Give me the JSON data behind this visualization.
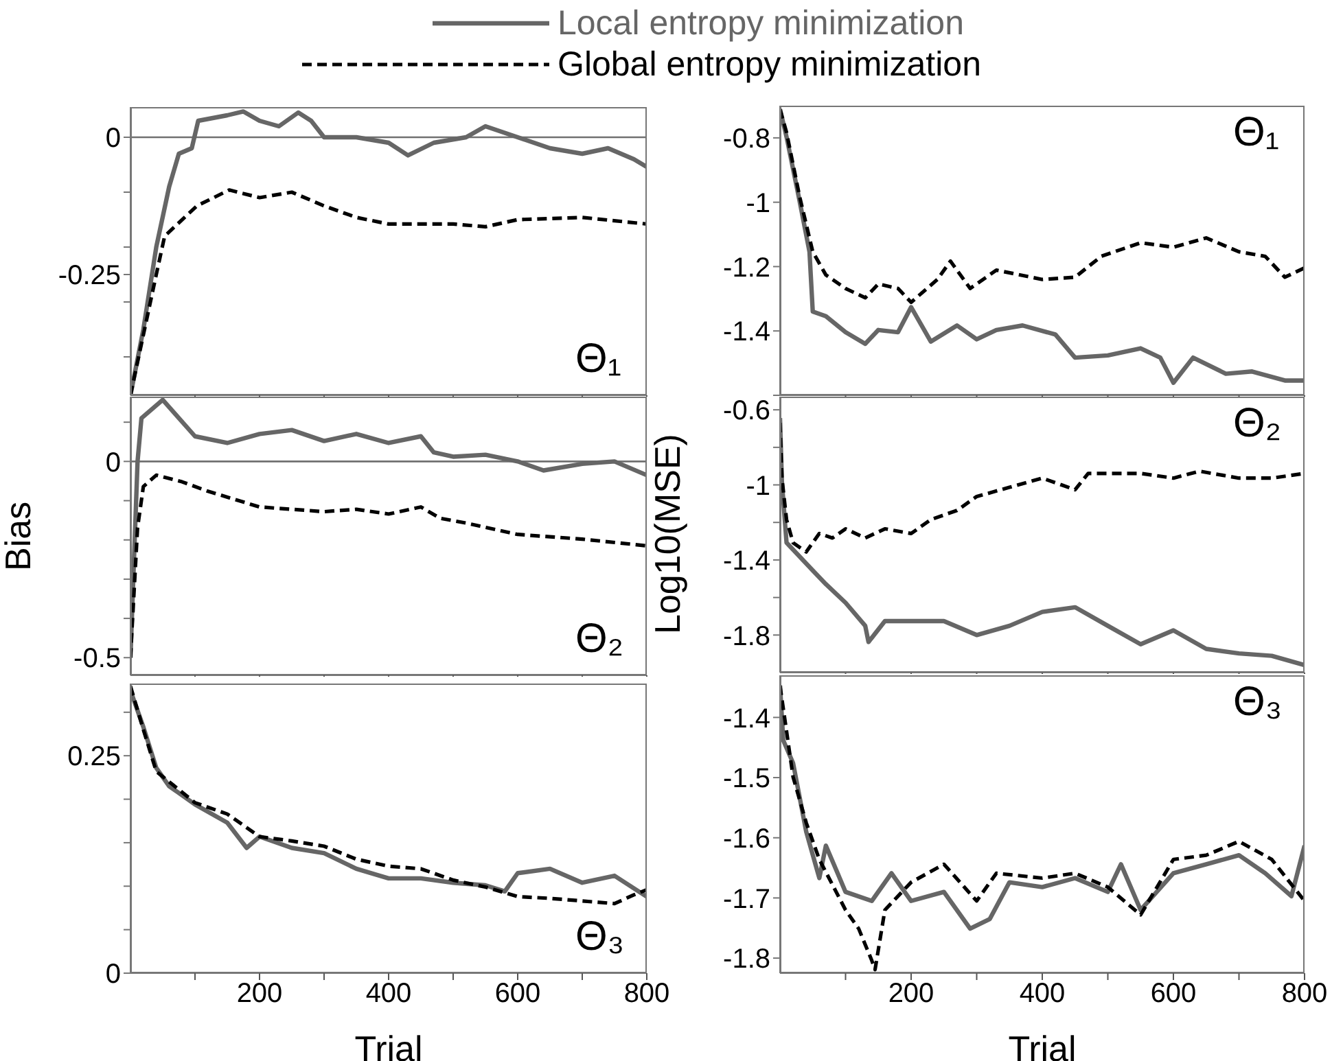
{
  "chart_data": [
    {
      "type": "line",
      "xlim": [
        0,
        800
      ],
      "xticks": [
        {
          "value": 100,
          "label": null
        },
        {
          "value": 200,
          "label": null
        },
        {
          "value": 300,
          "label": null
        },
        {
          "value": 400,
          "label": null
        },
        {
          "value": 500,
          "label": null
        },
        {
          "value": 600,
          "label": null
        },
        {
          "value": 700,
          "label": null
        },
        {
          "value": 800,
          "label": null
        }
      ],
      "ylim": [
        -0.47,
        0.055
      ],
      "yticks": [
        0,
        {
          "value": -0.1,
          "label": null
        },
        {
          "value": -0.2,
          "label": null
        },
        -0.25,
        {
          "value": -0.3,
          "label": null
        },
        {
          "value": -0.4,
          "label": null
        }
      ],
      "tick_labels": "y",
      "legend": "top",
      "annotations": [
        "Θ₁"
      ],
      "ref_lines": [
        {
          "axis": "y",
          "value": 0,
          "color": "#707070"
        }
      ],
      "series": [
        {
          "name": "Local entropy minimization",
          "color": "#666666",
          "line_style": "solid",
          "x": [
            0,
            20,
            40,
            60,
            75,
            95,
            105,
            150,
            175,
            200,
            230,
            260,
            280,
            300,
            350,
            400,
            430,
            470,
            520,
            550,
            600,
            650,
            700,
            740,
            780,
            800
          ],
          "values": [
            -0.47,
            -0.35,
            -0.2,
            -0.09,
            -0.03,
            -0.02,
            0.03,
            0.04,
            0.047,
            0.03,
            0.02,
            0.045,
            0.03,
            0.0,
            0.0,
            -0.01,
            -0.033,
            -0.01,
            0.0,
            0.02,
            0.0,
            -0.02,
            -0.03,
            -0.02,
            -0.04,
            -0.054
          ]
        },
        {
          "name": "Global entropy minimization",
          "color": "#000000",
          "line_style": "dashed",
          "x": [
            0,
            40,
            53,
            103,
            153,
            200,
            250,
            300,
            350,
            400,
            500,
            550,
            600,
            700,
            800
          ],
          "values": [
            -0.47,
            -0.25,
            -0.18,
            -0.125,
            -0.096,
            -0.11,
            -0.1,
            -0.125,
            -0.146,
            -0.158,
            -0.158,
            -0.163,
            -0.15,
            -0.146,
            -0.158
          ]
        }
      ]
    },
    {
      "type": "line",
      "xlim": [
        0,
        800
      ],
      "xticks": [
        {
          "value": 100,
          "label": null
        },
        {
          "value": 200,
          "label": null
        },
        {
          "value": 300,
          "label": null
        },
        {
          "value": 400,
          "label": null
        },
        {
          "value": 500,
          "label": null
        },
        {
          "value": 600,
          "label": null
        },
        {
          "value": 700,
          "label": null
        },
        {
          "value": 800,
          "label": null
        }
      ],
      "ylim": [
        -1.6,
        -0.7
      ],
      "yticks": [
        -0.8,
        -1,
        -1.2,
        -1.4,
        {
          "value": -1.6,
          "label": null
        }
      ],
      "tick_labels": "y",
      "annotations": [
        "Θ₁"
      ],
      "series": [
        {
          "color": "#666666",
          "line_style": "solid",
          "x": [
            0,
            10,
            30,
            45,
            50,
            70,
            100,
            130,
            150,
            180,
            200,
            230,
            270,
            300,
            330,
            370,
            420,
            450,
            500,
            550,
            580,
            600,
            630,
            680,
            720,
            770,
            800
          ],
          "values": [
            -0.711,
            -0.797,
            -0.997,
            -1.154,
            -1.34,
            -1.354,
            -1.404,
            -1.44,
            -1.397,
            -1.404,
            -1.326,
            -1.433,
            -1.383,
            -1.426,
            -1.397,
            -1.383,
            -1.411,
            -1.483,
            -1.476,
            -1.454,
            -1.483,
            -1.561,
            -1.483,
            -1.533,
            -1.526,
            -1.554,
            -1.554
          ]
        },
        {
          "color": "#000000",
          "line_style": "dashed",
          "x": [
            0,
            10,
            30,
            50,
            70,
            100,
            130,
            150,
            180,
            200,
            240,
            260,
            290,
            330,
            400,
            450,
            490,
            550,
            600,
            650,
            700,
            740,
            770,
            800
          ],
          "values": [
            -0.711,
            -0.783,
            -0.983,
            -1.154,
            -1.226,
            -1.268,
            -1.297,
            -1.254,
            -1.268,
            -1.311,
            -1.24,
            -1.183,
            -1.268,
            -1.211,
            -1.24,
            -1.233,
            -1.168,
            -1.126,
            -1.14,
            -1.111,
            -1.154,
            -1.168,
            -1.233,
            -1.204
          ]
        }
      ]
    },
    {
      "type": "line",
      "xlim": [
        0,
        800
      ],
      "xticks": [
        {
          "value": 100,
          "label": null
        },
        {
          "value": 200,
          "label": null
        },
        {
          "value": 300,
          "label": null
        },
        {
          "value": 400,
          "label": null
        },
        {
          "value": 500,
          "label": null
        },
        {
          "value": 600,
          "label": null
        },
        {
          "value": 700,
          "label": null
        },
        {
          "value": 800,
          "label": null
        }
      ],
      "ylim": [
        -0.545,
        0.165
      ],
      "yticks": [
        {
          "value": 0.1,
          "label": null
        },
        0,
        {
          "value": -0.1,
          "label": null
        },
        {
          "value": -0.2,
          "label": null
        },
        {
          "value": -0.3,
          "label": null
        },
        {
          "value": -0.4,
          "label": null
        },
        -0.5
      ],
      "tick_labels": "y",
      "ylabel": "Bias",
      "annotations": [
        "Θ₂"
      ],
      "ref_lines": [
        {
          "axis": "y",
          "value": 0,
          "color": "#707070"
        }
      ],
      "series": [
        {
          "color": "#666666",
          "line_style": "solid",
          "x": [
            0,
            11,
            17,
            50,
            100,
            150,
            200,
            250,
            300,
            350,
            400,
            450,
            470,
            500,
            550,
            600,
            640,
            700,
            750,
            800
          ],
          "values": [
            -0.5,
            0.0,
            0.11,
            0.157,
            0.064,
            0.047,
            0.07,
            0.08,
            0.052,
            0.07,
            0.047,
            0.064,
            0.023,
            0.012,
            0.017,
            0.0,
            -0.023,
            -0.006,
            0.0,
            -0.035
          ]
        },
        {
          "color": "#000000",
          "line_style": "dashed",
          "x": [
            0,
            11,
            20,
            40,
            80,
            120,
            200,
            250,
            300,
            350,
            400,
            450,
            480,
            520,
            600,
            650,
            700,
            800
          ],
          "values": [
            -0.5,
            -0.169,
            -0.064,
            -0.035,
            -0.052,
            -0.076,
            -0.116,
            -0.122,
            -0.128,
            -0.122,
            -0.134,
            -0.116,
            -0.145,
            -0.157,
            -0.186,
            -0.192,
            -0.198,
            -0.215
          ]
        }
      ]
    },
    {
      "type": "line",
      "xlim": [
        0,
        800
      ],
      "xticks": [
        {
          "value": 100,
          "label": null
        },
        {
          "value": 200,
          "label": null
        },
        {
          "value": 300,
          "label": null
        },
        {
          "value": 400,
          "label": null
        },
        {
          "value": 500,
          "label": null
        },
        {
          "value": 600,
          "label": null
        },
        {
          "value": 700,
          "label": null
        },
        {
          "value": 800,
          "label": null
        }
      ],
      "ylim": [
        -2.0,
        -0.53
      ],
      "yticks": [
        -0.6,
        {
          "value": -0.8,
          "label": null
        },
        -1,
        {
          "value": -1.2,
          "label": null
        },
        -1.4,
        {
          "value": -1.6,
          "label": null
        },
        -1.8
      ],
      "tick_labels": "y",
      "ylabel": "Log10(MSE)",
      "annotations": [
        "Θ₂"
      ],
      "series": [
        {
          "color": "#666666",
          "line_style": "solid",
          "x": [
            0,
            3,
            10,
            30,
            50,
            70,
            100,
            130,
            135,
            160,
            200,
            250,
            300,
            350,
            400,
            450,
            500,
            550,
            600,
            650,
            700,
            750,
            800
          ],
          "values": [
            -0.644,
            -0.989,
            -1.308,
            -1.382,
            -1.456,
            -1.529,
            -1.628,
            -1.751,
            -1.837,
            -1.726,
            -1.726,
            -1.726,
            -1.8,
            -1.751,
            -1.677,
            -1.652,
            -1.751,
            -1.849,
            -1.775,
            -1.874,
            -1.898,
            -1.911,
            -1.96
          ]
        },
        {
          "color": "#000000",
          "line_style": "dashed",
          "x": [
            0,
            3,
            10,
            20,
            40,
            60,
            80,
            100,
            130,
            160,
            200,
            230,
            270,
            300,
            350,
            400,
            430,
            450,
            470,
            550,
            600,
            640,
            700,
            750,
            800
          ],
          "values": [
            -0.669,
            -0.964,
            -1.185,
            -1.308,
            -1.357,
            -1.259,
            -1.283,
            -1.234,
            -1.283,
            -1.234,
            -1.259,
            -1.185,
            -1.136,
            -1.062,
            -1.013,
            -0.964,
            -1.001,
            -1.026,
            -0.939,
            -0.939,
            -0.964,
            -0.927,
            -0.964,
            -0.964,
            -0.939
          ]
        }
      ]
    },
    {
      "type": "line",
      "xlim": [
        0,
        800
      ],
      "xticks": [
        {
          "value": 100,
          "label": null
        },
        200,
        {
          "value": 300,
          "label": null
        },
        400,
        {
          "value": 500,
          "label": null
        },
        600,
        {
          "value": 700,
          "label": null
        },
        800
      ],
      "ylim": [
        0,
        0.333
      ],
      "yticks": [
        0,
        {
          "value": 0.05,
          "label": null
        },
        {
          "value": 0.1,
          "label": null
        },
        {
          "value": 0.15,
          "label": null
        },
        {
          "value": 0.2,
          "label": null
        },
        0.25,
        {
          "value": 0.3,
          "label": null
        }
      ],
      "xlabel": "Trial",
      "annotations": [
        "Θ₃"
      ],
      "series": [
        {
          "color": "#666666",
          "line_style": "solid",
          "x": [
            0,
            20,
            40,
            60,
            100,
            150,
            180,
            200,
            250,
            300,
            350,
            400,
            450,
            500,
            550,
            580,
            600,
            650,
            700,
            750,
            800
          ],
          "values": [
            0.325,
            0.283,
            0.236,
            0.215,
            0.194,
            0.173,
            0.144,
            0.157,
            0.144,
            0.138,
            0.12,
            0.109,
            0.109,
            0.104,
            0.101,
            0.094,
            0.115,
            0.12,
            0.104,
            0.112,
            0.088
          ]
        },
        {
          "color": "#000000",
          "line_style": "dashed",
          "x": [
            0,
            20,
            40,
            100,
            150,
            200,
            250,
            300,
            350,
            400,
            450,
            500,
            550,
            600,
            650,
            700,
            750,
            780,
            800
          ],
          "values": [
            0.33,
            0.28,
            0.232,
            0.196,
            0.183,
            0.157,
            0.152,
            0.146,
            0.131,
            0.123,
            0.12,
            0.107,
            0.099,
            0.088,
            0.086,
            0.083,
            0.08,
            0.09,
            0.096
          ]
        }
      ]
    },
    {
      "type": "line",
      "xlim": [
        0,
        800
      ],
      "xticks": [
        {
          "value": 100,
          "label": null
        },
        200,
        {
          "value": 300,
          "label": null
        },
        400,
        {
          "value": 500,
          "label": null
        },
        600,
        {
          "value": 700,
          "label": null
        },
        800
      ],
      "ylim": [
        -1.825,
        -1.33
      ],
      "yticks": [
        -1.4,
        -1.5,
        -1.6,
        -1.7,
        -1.8
      ],
      "xlabel": "Trial",
      "annotations": [
        "Θ₃"
      ],
      "series": [
        {
          "color": "#666666",
          "line_style": "solid",
          "x": [
            0,
            5,
            20,
            40,
            60,
            70,
            100,
            140,
            170,
            200,
            250,
            290,
            320,
            350,
            400,
            450,
            500,
            520,
            550,
            600,
            650,
            700,
            740,
            780,
            800
          ],
          "values": [
            -1.347,
            -1.438,
            -1.476,
            -1.59,
            -1.667,
            -1.613,
            -1.69,
            -1.705,
            -1.659,
            -1.705,
            -1.69,
            -1.751,
            -1.735,
            -1.674,
            -1.682,
            -1.667,
            -1.69,
            -1.644,
            -1.72,
            -1.659,
            -1.644,
            -1.629,
            -1.659,
            -1.697,
            -1.613
          ]
        },
        {
          "color": "#000000",
          "line_style": "dashed",
          "x": [
            0,
            20,
            40,
            60,
            100,
            120,
            140,
            145,
            160,
            200,
            250,
            300,
            330,
            400,
            450,
            500,
            550,
            600,
            650,
            700,
            750,
            800
          ],
          "values": [
            -1.347,
            -1.499,
            -1.575,
            -1.636,
            -1.72,
            -1.751,
            -1.804,
            -1.819,
            -1.72,
            -1.674,
            -1.644,
            -1.705,
            -1.659,
            -1.667,
            -1.659,
            -1.682,
            -1.728,
            -1.636,
            -1.629,
            -1.606,
            -1.636,
            -1.705
          ]
        }
      ]
    }
  ]
}
